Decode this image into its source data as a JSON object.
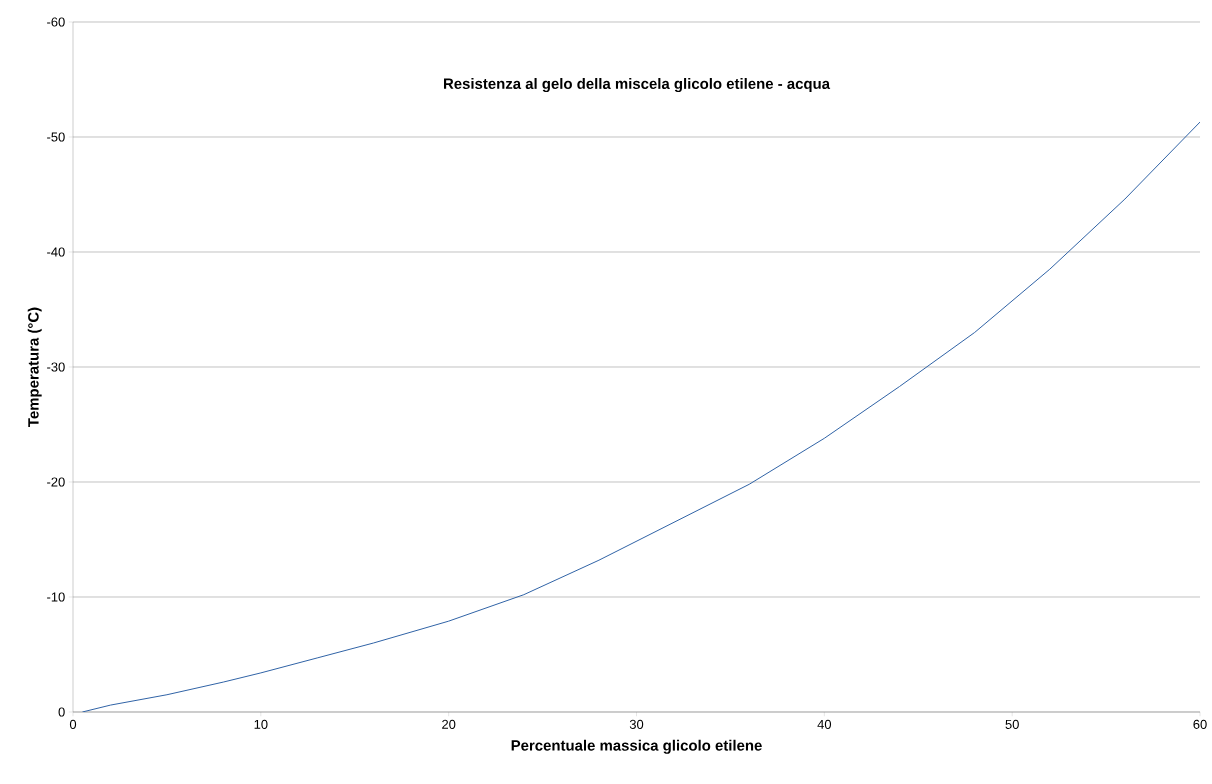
{
  "chart_data": {
    "type": "line",
    "title": "Resistenza al gelo della miscela glicolo etilene - acqua",
    "xlabel": "Percentuale massica glicolo etilene",
    "ylabel": "Temperatura (°C)",
    "x": [
      0.5,
      2,
      5,
      8,
      10,
      13,
      16,
      20,
      24,
      28,
      32,
      36,
      40,
      44,
      48,
      52,
      56,
      60
    ],
    "series": [
      {
        "color": "#2f62a6",
        "values": [
          0,
          -0.6,
          -1.5,
          -2.6,
          -3.4,
          -4.7,
          -6,
          -7.9,
          -10.2,
          -13.2,
          -16.5,
          -19.8,
          -23.8,
          -28.3,
          -33,
          -38.5,
          -44.6,
          -51.3
        ]
      }
    ],
    "xlim": [
      0,
      60
    ],
    "ylim": [
      0,
      -60
    ],
    "xticks": [
      0,
      10,
      20,
      30,
      40,
      50,
      60
    ],
    "yticks": [
      0,
      -10,
      -20,
      -30,
      -40,
      -50,
      -60
    ],
    "grid": "y",
    "marker": "none",
    "line_style": "solid"
  }
}
